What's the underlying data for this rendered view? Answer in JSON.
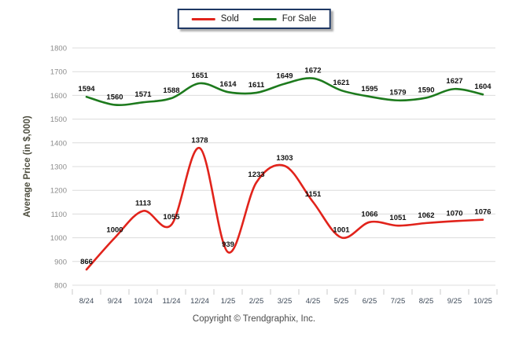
{
  "legend": {
    "items": [
      {
        "label": "Sold"
      },
      {
        "label": "For Sale"
      }
    ]
  },
  "footer": {
    "copyright": "Copyright © Trendgraphix, Inc."
  },
  "chart_data": {
    "type": "line",
    "curve": "spline",
    "title": "",
    "xlabel": "",
    "ylabel": "Average Price (in $,000)",
    "ylim": [
      800,
      1800
    ],
    "ytick_step": 100,
    "grid": "horizontal-only",
    "legend_position": "top-center",
    "data_labels": true,
    "categories": [
      "8/24",
      "9/24",
      "10/24",
      "11/24",
      "12/24",
      "1/25",
      "2/25",
      "3/25",
      "4/25",
      "5/25",
      "6/25",
      "7/25",
      "8/25",
      "9/25",
      "10/25"
    ],
    "series": [
      {
        "name": "Sold",
        "color": "#e1231b",
        "values": [
          866,
          1000,
          1113,
          1055,
          1378,
          939,
          1233,
          1303,
          1151,
          1001,
          1066,
          1051,
          1062,
          1070,
          1076
        ]
      },
      {
        "name": "For Sale",
        "color": "#1d7a1d",
        "values": [
          1594,
          1560,
          1571,
          1588,
          1651,
          1614,
          1611,
          1649,
          1672,
          1621,
          1595,
          1579,
          1590,
          1627,
          1604
        ]
      }
    ],
    "colors": {
      "gridline": "#dcdcdc",
      "tick_mark": "#c8c8c8",
      "y_tick_label": "#8c8c8c",
      "x_tick_label": "#3e4a59",
      "data_label": "#111111",
      "axis_title": "#4c4c3d",
      "legend_border": "#1f3864"
    }
  }
}
